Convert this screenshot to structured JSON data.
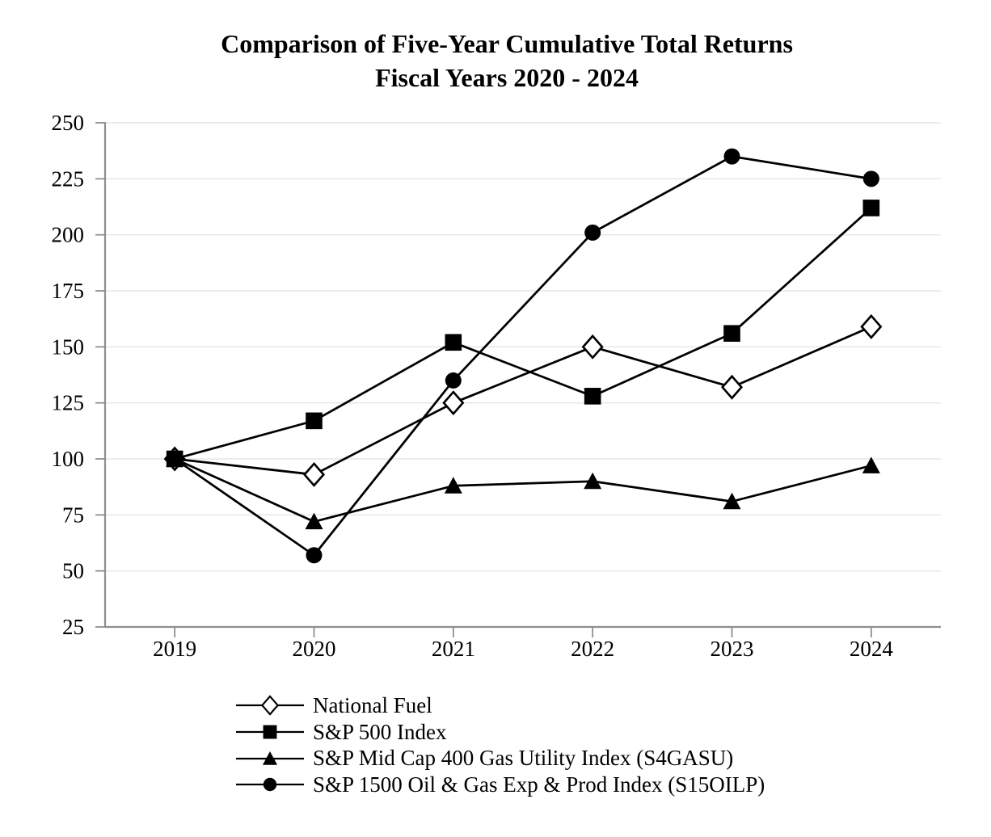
{
  "chart_data": {
    "type": "line",
    "title": "Comparison of Five-Year Cumulative Total Returns",
    "subtitle": "Fiscal Years 2020 - 2024",
    "categories": [
      "2019",
      "2020",
      "2021",
      "2022",
      "2023",
      "2024"
    ],
    "series": [
      {
        "name": "National Fuel",
        "marker": "diamond-open",
        "values": [
          100,
          93,
          125,
          150,
          132,
          159
        ]
      },
      {
        "name": "S&P 500 Index",
        "marker": "square-filled",
        "values": [
          100,
          117,
          152,
          128,
          156,
          212
        ]
      },
      {
        "name": "S&P Mid Cap 400 Gas Utility Index (S4GASU)",
        "marker": "triangle-filled",
        "values": [
          100,
          72,
          88,
          90,
          81,
          97
        ]
      },
      {
        "name": "S&P 1500 Oil & Gas Exp & Prod Index (S15OILP)",
        "marker": "circle-filled",
        "values": [
          100,
          57,
          135,
          201,
          235,
          225
        ]
      }
    ],
    "xlabel": "",
    "ylabel": "",
    "ylim": [
      25,
      250
    ],
    "yticks": [
      25,
      50,
      75,
      100,
      125,
      150,
      175,
      200,
      225,
      250
    ],
    "grid": true,
    "legend_position": "bottom-left",
    "colors": {
      "series": "#000000",
      "gridline": "#e5e5e5",
      "axis": "#8f8f8f",
      "background": "#ffffff",
      "marker_open_fill": "#ffffff"
    }
  }
}
